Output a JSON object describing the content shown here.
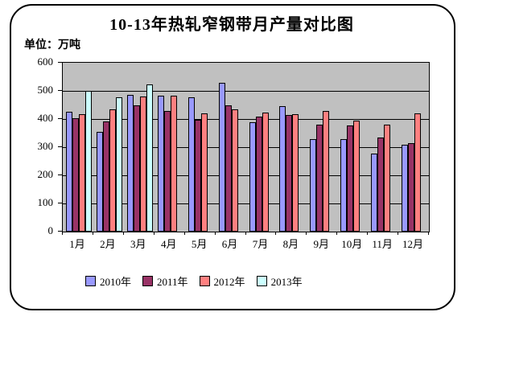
{
  "title": "10-13年热轧窄钢带月产量对比图",
  "unit_label": "单位：万吨",
  "chart_data": {
    "type": "bar",
    "title": "10-13年热轧窄钢带月产量对比图",
    "unit": "万吨",
    "categories": [
      "1月",
      "2月",
      "3月",
      "4月",
      "5月",
      "6月",
      "7月",
      "8月",
      "9月",
      "10月",
      "11月",
      "12月"
    ],
    "series": [
      {
        "name": "2010年",
        "color": "#9999FF",
        "values": [
          425,
          353,
          486,
          484,
          478,
          530,
          388,
          445,
          330,
          330,
          277,
          310
        ]
      },
      {
        "name": "2011年",
        "color": "#993366",
        "values": [
          403,
          392,
          448,
          430,
          398,
          448,
          408,
          413,
          379,
          378,
          335,
          315
        ]
      },
      {
        "name": "2012年",
        "color": "#FF8080",
        "values": [
          417,
          433,
          480,
          482,
          420,
          434,
          424,
          417,
          428,
          394,
          380,
          419
        ]
      },
      {
        "name": "2013年",
        "color": "#CCFFFF",
        "values": [
          500,
          477,
          523,
          null,
          null,
          null,
          null,
          null,
          null,
          null,
          null,
          null
        ]
      }
    ],
    "ylim": [
      0,
      600
    ],
    "yticks": [
      0,
      100,
      200,
      300,
      400,
      500,
      600
    ],
    "grid": true,
    "plot_background": "#C0C0C0",
    "legend_position": "bottom"
  }
}
